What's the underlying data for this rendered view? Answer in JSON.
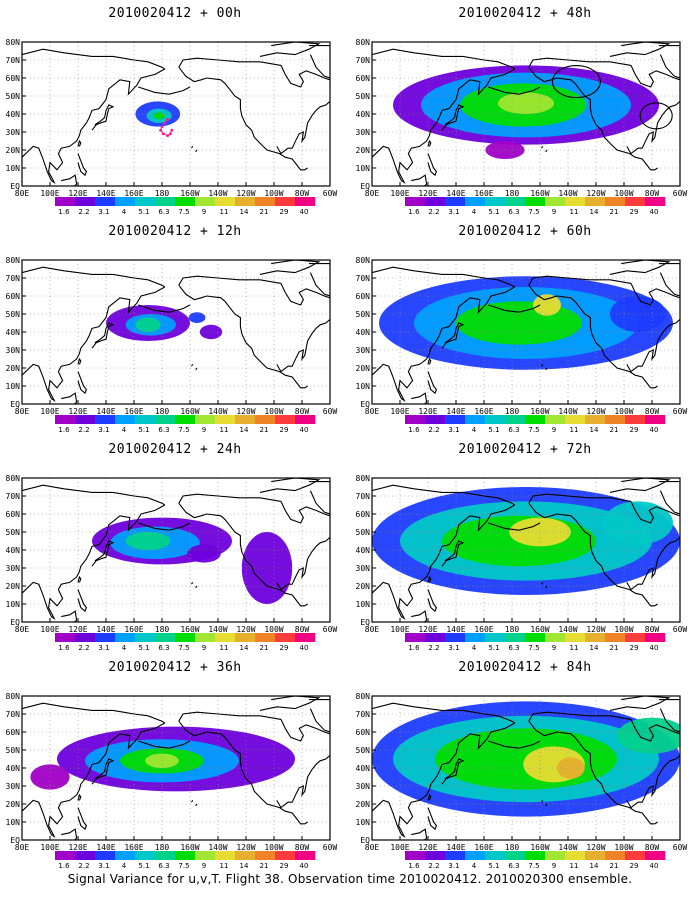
{
  "panels": [
    {
      "title": "2010020412 + 00h",
      "intensity": 0
    },
    {
      "title": "2010020412 + 48h",
      "intensity": 4
    },
    {
      "title": "2010020412 + 12h",
      "intensity": 1
    },
    {
      "title": "2010020412 + 60h",
      "intensity": 5
    },
    {
      "title": "2010020412 + 24h",
      "intensity": 2
    },
    {
      "title": "2010020412 + 72h",
      "intensity": 6
    },
    {
      "title": "2010020412 + 36h",
      "intensity": 3
    },
    {
      "title": "2010020412 + 84h",
      "intensity": 7
    }
  ],
  "lat_labels": [
    "EQ",
    "10N",
    "20N",
    "30N",
    "40N",
    "50N",
    "60N",
    "70N",
    "80N"
  ],
  "lon_labels": [
    "80E",
    "100E",
    "120E",
    "140E",
    "160E",
    "180",
    "160W",
    "140W",
    "120W",
    "100W",
    "80W",
    "60W"
  ],
  "colorbar": {
    "levels": [
      "1.6",
      "2.2",
      "3.1",
      "4",
      "5.1",
      "6.3",
      "7.5",
      "9",
      "11",
      "14",
      "21",
      "29",
      "40"
    ],
    "colors": [
      "#a000c8",
      "#6e00dc",
      "#1e3cff",
      "#00a0ff",
      "#00c8c8",
      "#00d28c",
      "#00dc00",
      "#a0e632",
      "#e6dc32",
      "#e6af2d",
      "#f08228",
      "#fa3c3c",
      "#f00082"
    ]
  },
  "caption": "Signal Variance for u,v,T. Flight 38. Observation time 2010020412. 2010020300 ensemble.",
  "map_colors": {
    "coast": "#000000",
    "grid": "#8a8a8a",
    "observations": "#ff1493",
    "annotation_circles": "#000000"
  }
}
